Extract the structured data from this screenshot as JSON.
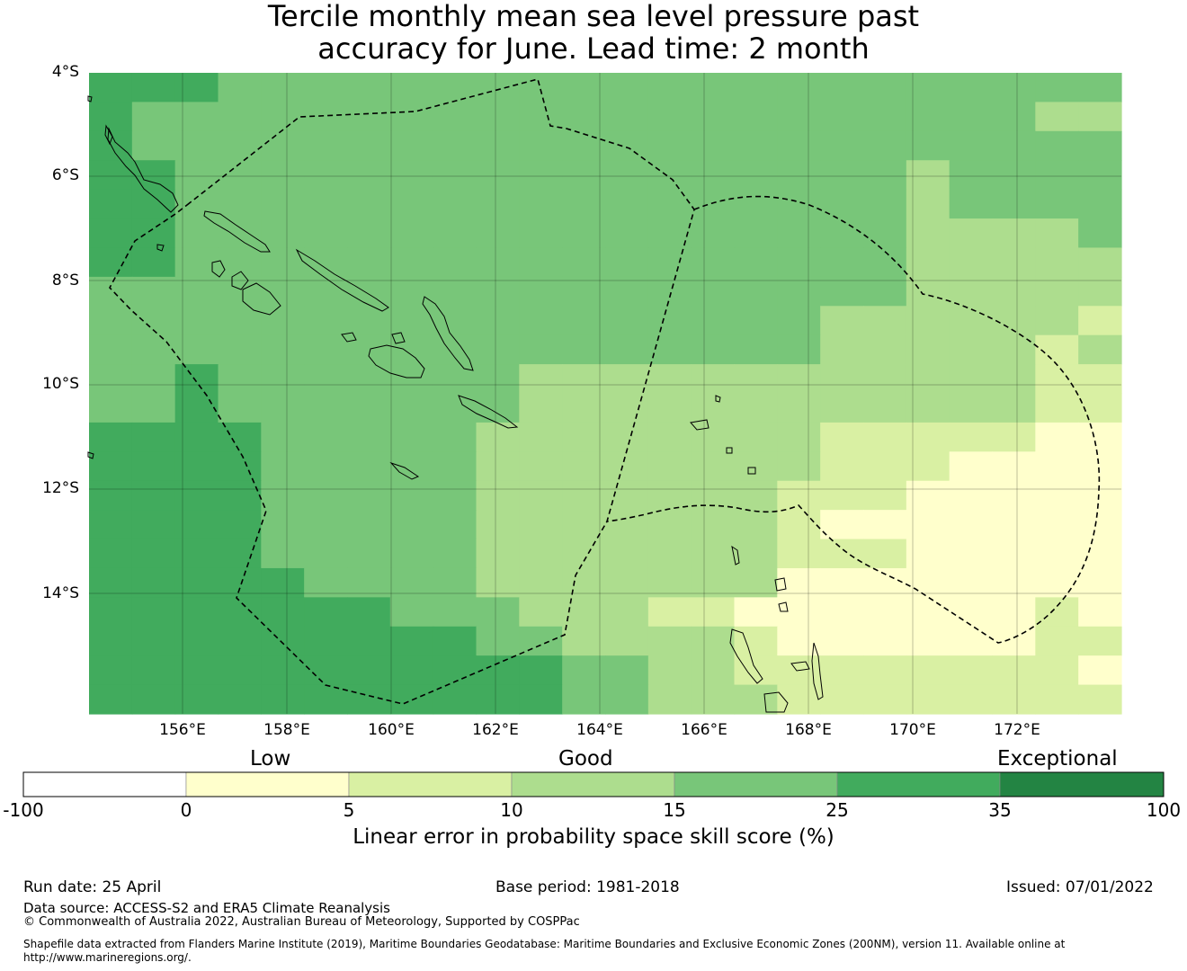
{
  "title": {
    "line1": "Tercile monthly mean sea level pressure past",
    "line2": "accuracy for June. Lead time: 2 month"
  },
  "map": {
    "lat_labels": [
      "4°S",
      "6°S",
      "8°S",
      "10°S",
      "12°S",
      "14°S"
    ],
    "lon_labels": [
      "156°E",
      "158°E",
      "160°E",
      "162°E",
      "164°E",
      "166°E",
      "168°E",
      "170°E",
      "172°E"
    ],
    "lon_range": [
      154.2,
      174.0
    ],
    "lat_range": [
      -4.0,
      -16.3
    ],
    "grid_lines": true,
    "boundary": "dashed EEZ outline",
    "coastlines": "Solomon Islands, Vanuatu, Bougainville"
  },
  "colorbar": {
    "ticks": [
      "-100",
      "0",
      "5",
      "10",
      "15",
      "25",
      "35",
      "100"
    ],
    "colors": [
      "#ffffff",
      "#ffffcc",
      "#d9f0a3",
      "#addd8e",
      "#78c679",
      "#41ab5d",
      "#238443"
    ],
    "categories": {
      "low": "Low",
      "good": "Good",
      "exceptional": "Exceptional"
    },
    "title": "Linear error in probability space skill score (%)"
  },
  "footer": {
    "run_date": "Run date: 25 April",
    "base_period": "Base period: 1981-2018",
    "issued": "Issued: 07/01/2022",
    "data_source": "Data source: ACCESS-S2 and ERA5 Climate Reanalysis",
    "copyright": "© Commonwealth of Australia 2022, Australian Bureau of Meteorology, Supported by COSPPac",
    "shapefile_line1": "Shapefile data extracted from Flanders Marine Institute (2019), Maritime Boundaries Geodatabase: Maritime Boundaries and Exclusive Economic Zones (200NM), version 11. Available online at",
    "shapefile_line2": "http://www.marineregions.org/."
  }
}
